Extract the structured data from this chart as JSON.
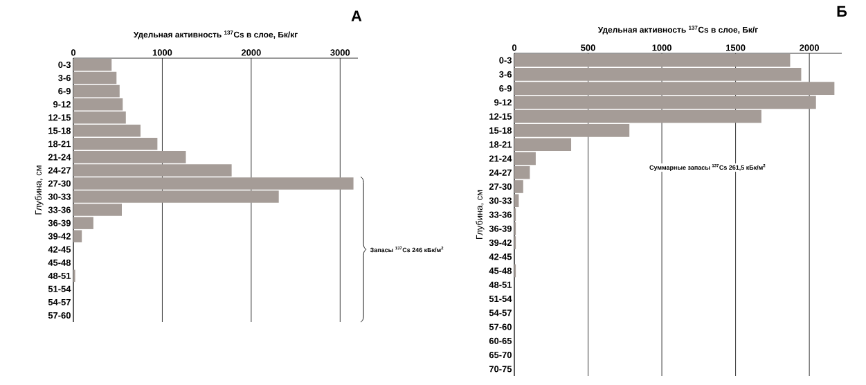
{
  "chart_data": [
    {
      "type": "bar",
      "orientation": "horizontal",
      "xlabel": "Удельная активность $^{137}$Cs  в слое, Бк/кг",
      "ylabel": "Глубина, см",
      "categories": [
        "0-3",
        "3-6",
        "6-9",
        "9-12",
        "12-15",
        "15-18",
        "18-21",
        "21-24",
        "24-27",
        "27-30",
        "30-33",
        "33-36",
        "36-39",
        "39-42",
        "42-45",
        "45-48",
        "48-51",
        "51-54",
        "54-57",
        "57-60"
      ],
      "values": [
        430,
        485,
        520,
        555,
        590,
        755,
        945,
        1265,
        1780,
        3150,
        2310,
        545,
        225,
        95,
        0,
        0,
        20,
        0,
        0,
        0
      ],
      "color": "#a59c97",
      "xlim": [
        0,
        3200
      ],
      "xticks": [
        0,
        1000,
        2000,
        3000
      ],
      "grid": "x",
      "annotations": [
        "А",
        "Запасы $^{137}$Cs 246 кБк/м$^{2}$"
      ]
    },
    {
      "type": "bar",
      "orientation": "horizontal",
      "xlabel": "Удельная активность $^{137}$Cs в слое, Бк/г",
      "ylabel": "Глубина, см",
      "categories": [
        "0-3",
        "3-6",
        "6-9",
        "9-12",
        "12-15",
        "15-18",
        "18-21",
        "21-24",
        "24-27",
        "27-30",
        "30-33",
        "33-36",
        "36-39",
        "39-42",
        "42-45",
        "45-48",
        "48-51",
        "51-54",
        "54-57",
        "57-60",
        "60-65",
        "65-70",
        "70-75"
      ],
      "values": [
        1870,
        1945,
        2170,
        2045,
        1675,
        780,
        385,
        145,
        105,
        60,
        30,
        10,
        10,
        10,
        0,
        10,
        0,
        0,
        0,
        0,
        0,
        0,
        0
      ],
      "color": "#a59c97",
      "xlim": [
        0,
        2220
      ],
      "xticks": [
        0,
        500,
        1000,
        1500,
        2000
      ],
      "grid": "x",
      "annotations": [
        "Б",
        "Суммарные запасы $^{137}$Cs 261,5  кБк/м$^{2}$"
      ]
    }
  ]
}
